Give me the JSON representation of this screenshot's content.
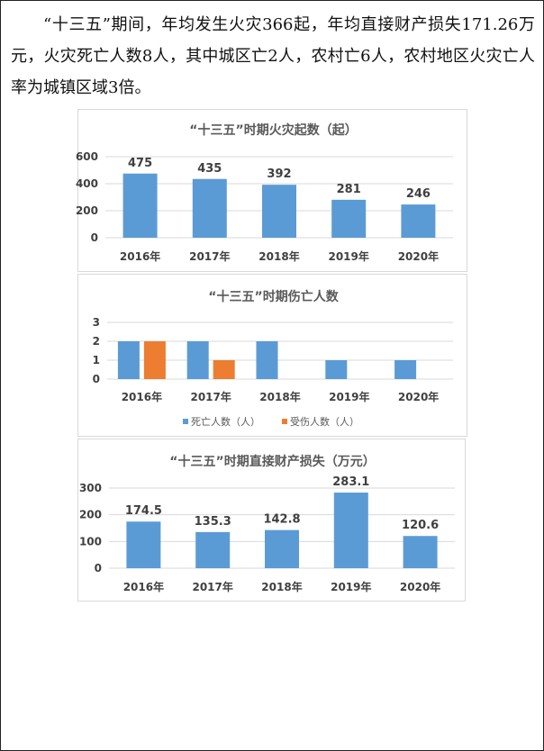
{
  "intro_text": "“十三五”期间，年均发生火灾366起，年均直接财产损失171.26万元，火灾死亡人数8人，其中城区亡2人，农村亡6人，农村地区火灾亡人率为城镇区域3倍。",
  "chart_data": [
    {
      "type": "bar",
      "title": "“十三五”时期火灾起数（起）",
      "categories": [
        "2016年",
        "2017年",
        "2018年",
        "2019年",
        "2020年"
      ],
      "series": [
        {
          "values": [
            475,
            435,
            392,
            281,
            246
          ]
        }
      ],
      "data_labels": [
        "475",
        "435",
        "392",
        "281",
        "246"
      ],
      "yticks": [
        "0",
        "200",
        "400",
        "600"
      ],
      "ylim": [
        0,
        600
      ],
      "grid": true,
      "colors": [
        "#5B9BD5"
      ]
    },
    {
      "type": "bar",
      "title": "“十三五”时期伤亡人数",
      "categories": [
        "2016年",
        "2017年",
        "2018年",
        "2019年",
        "2020年"
      ],
      "series": [
        {
          "name": "死亡人数（人）",
          "values": [
            2,
            2,
            2,
            1,
            1
          ]
        },
        {
          "name": "受伤人数（人）",
          "values": [
            2,
            1,
            0,
            0,
            0
          ]
        }
      ],
      "yticks": [
        "0",
        "1",
        "2",
        "3"
      ],
      "ylim": [
        0,
        3
      ],
      "grid": true,
      "legend": "bottom",
      "colors": [
        "#5B9BD5",
        "#ED7D31"
      ]
    },
    {
      "type": "bar",
      "title": "“十三五”时期直接财产损失（万元）",
      "categories": [
        "2016年",
        "2017年",
        "2018年",
        "2019年",
        "2020年"
      ],
      "series": [
        {
          "values": [
            174.5,
            135.3,
            142.8,
            283.1,
            120.6
          ]
        }
      ],
      "data_labels": [
        "174.5",
        "135.3",
        "142.8",
        "283.1",
        "120.6"
      ],
      "yticks": [
        "0",
        "100",
        "200",
        "300"
      ],
      "ylim": [
        0,
        300
      ],
      "grid": true,
      "colors": [
        "#5B9BD5"
      ]
    }
  ]
}
